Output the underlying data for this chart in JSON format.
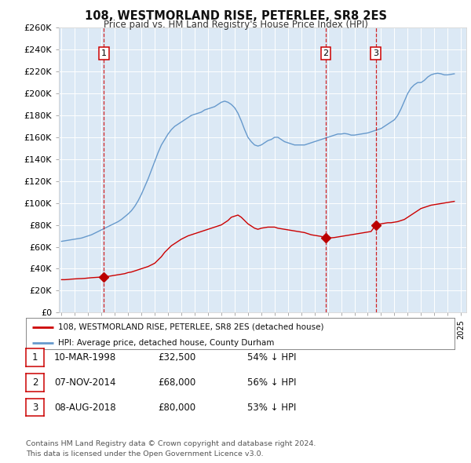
{
  "title": "108, WESTMORLAND RISE, PETERLEE, SR8 2ES",
  "subtitle": "Price paid vs. HM Land Registry's House Price Index (HPI)",
  "background_color": "#dce9f5",
  "plot_bg_color": "#dce9f5",
  "ylim": [
    0,
    260000
  ],
  "yticks": [
    0,
    20000,
    40000,
    60000,
    80000,
    100000,
    120000,
    140000,
    160000,
    180000,
    200000,
    220000,
    240000,
    260000
  ],
  "ytick_labels": [
    "£0",
    "£20K",
    "£40K",
    "£60K",
    "£80K",
    "£100K",
    "£120K",
    "£140K",
    "£160K",
    "£180K",
    "£200K",
    "£220K",
    "£240K",
    "£260K"
  ],
  "xlim_start": 1994.8,
  "xlim_end": 2025.4,
  "transactions": [
    {
      "date_num": 1998.19,
      "price": 32500,
      "label": "1"
    },
    {
      "date_num": 2014.85,
      "price": 68000,
      "label": "2"
    },
    {
      "date_num": 2018.6,
      "price": 80000,
      "label": "3"
    }
  ],
  "transaction_color": "#bb0000",
  "vline_color": "#cc0000",
  "red_line_color": "#cc0000",
  "blue_line_color": "#6699cc",
  "legend_label_red": "108, WESTMORLAND RISE, PETERLEE, SR8 2ES (detached house)",
  "legend_label_blue": "HPI: Average price, detached house, County Durham",
  "table_rows": [
    {
      "num": "1",
      "date": "10-MAR-1998",
      "price": "£32,500",
      "hpi": "54% ↓ HPI"
    },
    {
      "num": "2",
      "date": "07-NOV-2014",
      "price": "£68,000",
      "hpi": "56% ↓ HPI"
    },
    {
      "num": "3",
      "date": "08-AUG-2018",
      "price": "£80,000",
      "hpi": "53% ↓ HPI"
    }
  ],
  "footnote": "Contains HM Land Registry data © Crown copyright and database right 2024.\nThis data is licensed under the Open Government Licence v3.0.",
  "red_line_data": {
    "years": [
      1995.0,
      1995.25,
      1995.5,
      1995.75,
      1996.0,
      1996.25,
      1996.5,
      1996.75,
      1997.0,
      1997.25,
      1997.5,
      1997.75,
      1998.0,
      1998.19,
      1998.5,
      1998.75,
      1999.0,
      1999.25,
      1999.5,
      1999.75,
      2000.0,
      2000.25,
      2000.5,
      2000.75,
      2001.0,
      2001.25,
      2001.5,
      2001.75,
      2002.0,
      2002.25,
      2002.5,
      2002.75,
      2003.0,
      2003.25,
      2003.5,
      2003.75,
      2004.0,
      2004.25,
      2004.5,
      2004.75,
      2005.0,
      2005.25,
      2005.5,
      2005.75,
      2006.0,
      2006.25,
      2006.5,
      2006.75,
      2007.0,
      2007.25,
      2007.5,
      2007.75,
      2008.0,
      2008.25,
      2008.5,
      2008.75,
      2009.0,
      2009.25,
      2009.5,
      2009.75,
      2010.0,
      2010.25,
      2010.5,
      2010.75,
      2011.0,
      2011.25,
      2011.5,
      2011.75,
      2012.0,
      2012.25,
      2012.5,
      2012.75,
      2013.0,
      2013.25,
      2013.5,
      2013.75,
      2014.0,
      2014.25,
      2014.5,
      2014.85,
      2015.0,
      2015.25,
      2015.5,
      2015.75,
      2016.0,
      2016.25,
      2016.5,
      2016.75,
      2017.0,
      2017.25,
      2017.5,
      2017.75,
      2018.0,
      2018.25,
      2018.6,
      2018.75,
      2019.0,
      2019.25,
      2019.5,
      2019.75,
      2020.0,
      2020.25,
      2020.5,
      2020.75,
      2021.0,
      2021.25,
      2021.5,
      2021.75,
      2022.0,
      2022.25,
      2022.5,
      2022.75,
      2023.0,
      2023.25,
      2023.5,
      2023.75,
      2024.0,
      2024.25,
      2024.5
    ],
    "values": [
      30000,
      30000,
      30200,
      30500,
      30700,
      30900,
      31000,
      31200,
      31500,
      31800,
      32000,
      32200,
      32400,
      32500,
      33000,
      33500,
      34000,
      34500,
      35000,
      35500,
      36500,
      37000,
      38000,
      39000,
      40000,
      41000,
      42000,
      43500,
      45000,
      48000,
      51000,
      55000,
      58000,
      61000,
      63000,
      65000,
      67000,
      68500,
      70000,
      71000,
      72000,
      73000,
      74000,
      75000,
      76000,
      77000,
      78000,
      79000,
      80000,
      82000,
      84000,
      87000,
      88000,
      89000,
      87000,
      84000,
      81000,
      79000,
      77000,
      76000,
      77000,
      77500,
      78000,
      78000,
      78000,
      77000,
      76500,
      76000,
      75500,
      75000,
      74500,
      74000,
      73500,
      73000,
      72000,
      71000,
      70500,
      70000,
      69500,
      68000,
      68000,
      68200,
      68500,
      69000,
      69500,
      70000,
      70500,
      71000,
      71500,
      72000,
      72500,
      73000,
      73500,
      74000,
      80000,
      80500,
      81000,
      81500,
      82000,
      82000,
      82500,
      83000,
      84000,
      85000,
      87000,
      89000,
      91000,
      93000,
      95000,
      96000,
      97000,
      98000,
      98500,
      99000,
      99500,
      100000,
      100500,
      101000,
      101500
    ]
  },
  "blue_line_data": {
    "years": [
      1995.0,
      1995.25,
      1995.5,
      1995.75,
      1996.0,
      1996.25,
      1996.5,
      1996.75,
      1997.0,
      1997.25,
      1997.5,
      1997.75,
      1998.0,
      1998.25,
      1998.5,
      1998.75,
      1999.0,
      1999.25,
      1999.5,
      1999.75,
      2000.0,
      2000.25,
      2000.5,
      2000.75,
      2001.0,
      2001.25,
      2001.5,
      2001.75,
      2002.0,
      2002.25,
      2002.5,
      2002.75,
      2003.0,
      2003.25,
      2003.5,
      2003.75,
      2004.0,
      2004.25,
      2004.5,
      2004.75,
      2005.0,
      2005.25,
      2005.5,
      2005.75,
      2006.0,
      2006.25,
      2006.5,
      2006.75,
      2007.0,
      2007.25,
      2007.5,
      2007.75,
      2008.0,
      2008.25,
      2008.5,
      2008.75,
      2009.0,
      2009.25,
      2009.5,
      2009.75,
      2010.0,
      2010.25,
      2010.5,
      2010.75,
      2011.0,
      2011.25,
      2011.5,
      2011.75,
      2012.0,
      2012.25,
      2012.5,
      2012.75,
      2013.0,
      2013.25,
      2013.5,
      2013.75,
      2014.0,
      2014.25,
      2014.5,
      2014.75,
      2015.0,
      2015.25,
      2015.5,
      2015.75,
      2016.0,
      2016.25,
      2016.5,
      2016.75,
      2017.0,
      2017.25,
      2017.5,
      2017.75,
      2018.0,
      2018.25,
      2018.5,
      2018.75,
      2019.0,
      2019.25,
      2019.5,
      2019.75,
      2020.0,
      2020.25,
      2020.5,
      2020.75,
      2021.0,
      2021.25,
      2021.5,
      2021.75,
      2022.0,
      2022.25,
      2022.5,
      2022.75,
      2023.0,
      2023.25,
      2023.5,
      2023.75,
      2024.0,
      2024.25,
      2024.5
    ],
    "values": [
      65000,
      65500,
      66000,
      66500,
      67000,
      67500,
      68000,
      69000,
      70000,
      71000,
      72500,
      74000,
      75500,
      77000,
      78500,
      80000,
      81500,
      83000,
      85000,
      87500,
      90000,
      93000,
      97000,
      102000,
      108000,
      115000,
      122000,
      130000,
      138000,
      146000,
      153000,
      158000,
      163000,
      167000,
      170000,
      172000,
      174000,
      176000,
      178000,
      180000,
      181000,
      182000,
      183000,
      185000,
      186000,
      187000,
      188000,
      190000,
      192000,
      193000,
      192000,
      190000,
      187000,
      182000,
      175000,
      167000,
      160000,
      156000,
      153000,
      152000,
      153000,
      155000,
      157000,
      158000,
      160000,
      160000,
      158000,
      156000,
      155000,
      154000,
      153000,
      153000,
      153000,
      153000,
      154000,
      155000,
      156000,
      157000,
      158000,
      159000,
      160000,
      161000,
      162000,
      163000,
      163000,
      163500,
      163000,
      162000,
      162000,
      162500,
      163000,
      163500,
      164000,
      165000,
      166000,
      167000,
      168000,
      170000,
      172000,
      174000,
      176000,
      180000,
      186000,
      193000,
      200000,
      205000,
      208000,
      210000,
      210000,
      212000,
      215000,
      217000,
      218000,
      218500,
      218000,
      217000,
      217000,
      217500,
      218000
    ]
  }
}
